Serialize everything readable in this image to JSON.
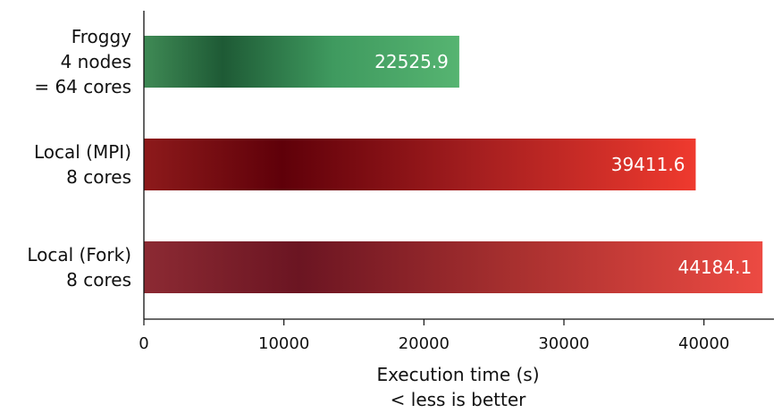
{
  "chart_data": {
    "type": "bar",
    "orientation": "horizontal",
    "categories": [
      [
        "Froggy",
        "4 nodes",
        "= 64 cores"
      ],
      [
        "Local (MPI)",
        "8 cores"
      ],
      [
        "Local (Fork)",
        "8 cores"
      ]
    ],
    "values": [
      22525.9,
      39411.6,
      44184.1
    ],
    "data_labels": [
      "22525.9",
      "39411.6",
      "44184.1"
    ],
    "xlabel": [
      "Execution time (s)",
      "< less is better"
    ],
    "xlim": [
      0,
      45000
    ],
    "xticks": [
      0,
      10000,
      20000,
      30000,
      40000
    ],
    "xtick_labels": [
      "0",
      "10000",
      "20000",
      "30000",
      "40000"
    ],
    "grid": false,
    "bar_gradients": [
      [
        "#3f8a55",
        "#1e5a35",
        "#3f9a5f",
        "#56b471"
      ],
      [
        "#8d1a1b",
        "#5f0009",
        "#a41e1f",
        "#ef3a2e"
      ],
      [
        "#8c2a33",
        "#6b1522",
        "#a8302f",
        "#ec4a42"
      ]
    ]
  }
}
